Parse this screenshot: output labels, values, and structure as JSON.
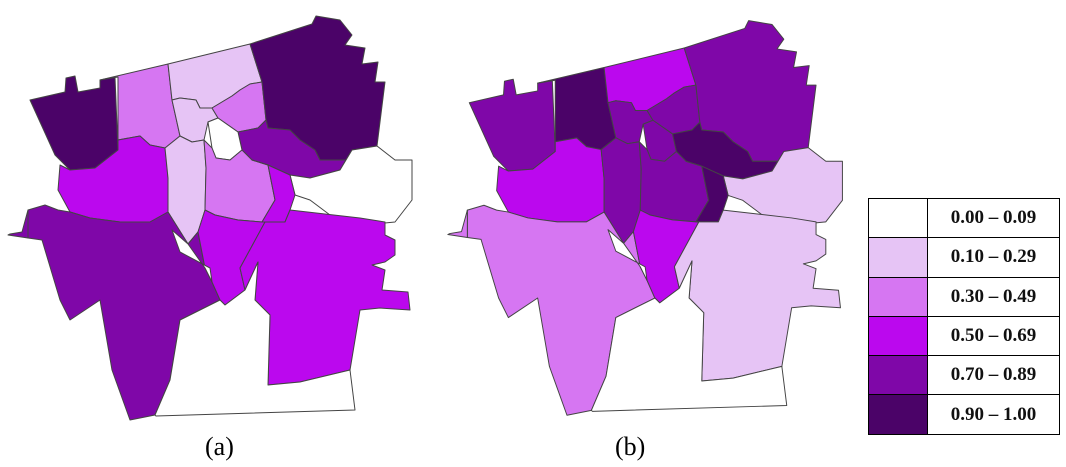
{
  "captions": {
    "a": "(a)",
    "b": "(b)"
  },
  "legend": {
    "classes": [
      {
        "label": "0.00 – 0.09",
        "color": "#ffffff"
      },
      {
        "label": "0.10 – 0.29",
        "color": "#e6c4f5"
      },
      {
        "label": "0.30 – 0.49",
        "color": "#d676f2"
      },
      {
        "label": "0.50 – 0.69",
        "color": "#bb08ee"
      },
      {
        "label": "0.70 – 0.89",
        "color": "#7f07a8"
      },
      {
        "label": "0.90 – 1.00",
        "color": "#4b0368"
      }
    ]
  },
  "maps": {
    "a": [
      {
        "region": "northwest",
        "class": 5
      },
      {
        "region": "north-west-central",
        "class": 2
      },
      {
        "region": "north-central",
        "class": 1
      },
      {
        "region": "center-strip",
        "class": 1
      },
      {
        "region": "north-center-right",
        "class": 2
      },
      {
        "region": "northeast",
        "class": 5
      },
      {
        "region": "east-central",
        "class": 4
      },
      {
        "region": "center-small",
        "class": 0
      },
      {
        "region": "far-east",
        "class": 0
      },
      {
        "region": "west",
        "class": 3
      },
      {
        "region": "center-left",
        "class": 1
      },
      {
        "region": "center",
        "class": 2
      },
      {
        "region": "center-right",
        "class": 3
      },
      {
        "region": "southwest",
        "class": 4
      },
      {
        "region": "south-center",
        "class": 3
      },
      {
        "region": "southeast",
        "class": 3
      },
      {
        "region": "gap",
        "class": 0
      },
      {
        "region": "south",
        "class": 0
      },
      {
        "region": "west-arm",
        "class": 4
      }
    ],
    "b": [
      {
        "region": "northwest",
        "class": 4
      },
      {
        "region": "north-west-central",
        "class": 5
      },
      {
        "region": "north-central",
        "class": 3
      },
      {
        "region": "center-strip",
        "class": 4
      },
      {
        "region": "north-center-right",
        "class": 4
      },
      {
        "region": "northeast",
        "class": 4
      },
      {
        "region": "east-central",
        "class": 5
      },
      {
        "region": "center-small",
        "class": 4
      },
      {
        "region": "far-east",
        "class": 1
      },
      {
        "region": "west",
        "class": 3
      },
      {
        "region": "center-left",
        "class": 4
      },
      {
        "region": "center",
        "class": 4
      },
      {
        "region": "center-right",
        "class": 5
      },
      {
        "region": "southwest",
        "class": 2
      },
      {
        "region": "south-center",
        "class": 3
      },
      {
        "region": "southeast",
        "class": 1
      },
      {
        "region": "gap",
        "class": 0
      },
      {
        "region": "south",
        "class": 0
      },
      {
        "region": "west-arm",
        "class": 2
      }
    ]
  }
}
